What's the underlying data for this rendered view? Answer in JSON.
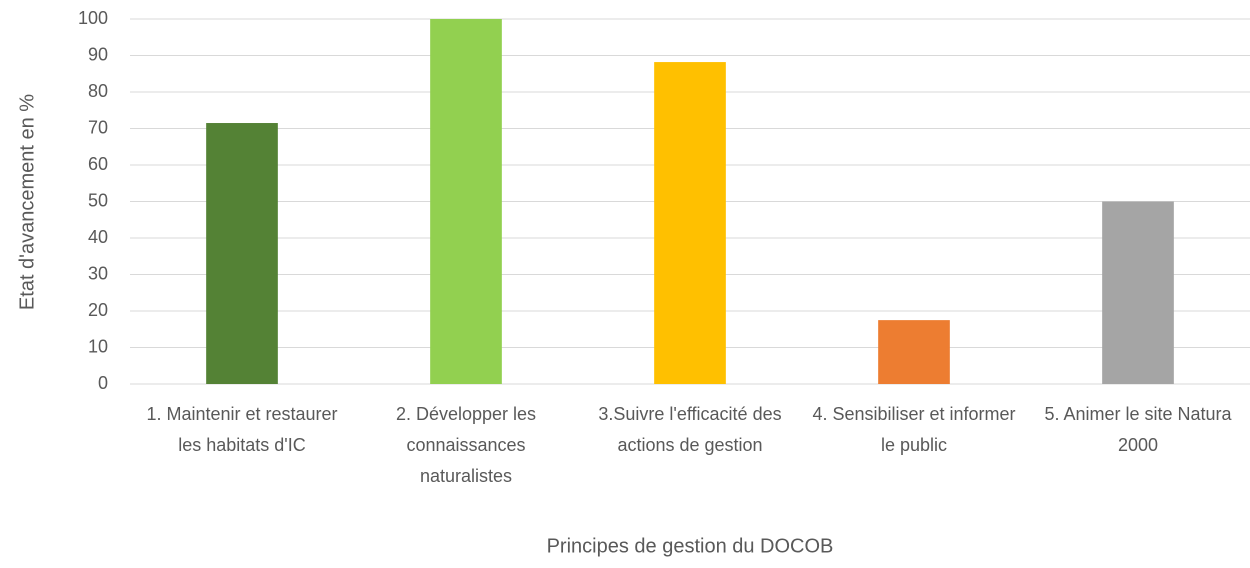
{
  "chart_data": {
    "type": "bar",
    "x_label": "Principes de gestion du DOCOB",
    "y_label": "Etat d'avancement en %",
    "categories": [
      "1. Maintenir et restaurer les habitats d'IC",
      "2. Développer les connaissances naturalistes",
      "3.Suivre l'efficacité des actions de gestion",
      "4. Sensibiliser et informer le public",
      "5. Animer le site Natura 2000"
    ],
    "values": [
      71.5,
      100,
      88.2,
      17.5,
      50
    ],
    "colors": [
      "#548235",
      "#92d050",
      "#ffc000",
      "#ed7d31",
      "#a5a5a5"
    ],
    "ylim": [
      0,
      100
    ],
    "yticks": [
      0,
      10,
      20,
      30,
      40,
      50,
      60,
      70,
      80,
      90,
      100
    ],
    "grid": true
  }
}
